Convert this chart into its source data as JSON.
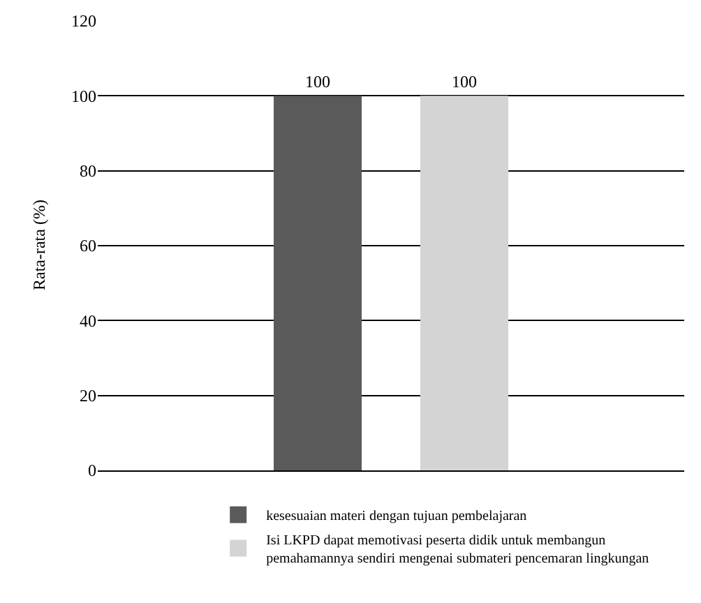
{
  "chart_data": {
    "type": "bar",
    "categories": [
      null
    ],
    "ylabel": "Rata-rata (%)",
    "ylim": [
      0,
      120
    ],
    "yticks": [
      0,
      20,
      40,
      60,
      80,
      100,
      120
    ],
    "grid": "y",
    "legend": "bottom",
    "data_labels": true,
    "series": [
      {
        "name": "kesesuaian materi dengan tujuan pembelajaran",
        "color": "#5a5a5a",
        "values": [
          100
        ]
      },
      {
        "name": "Isi LKPD dapat memotivasi peserta didik untuk membangun pemahamannya sendiri mengenai submateri pencemaran lingkungan",
        "color": "#d4d4d4",
        "values": [
          100
        ]
      }
    ]
  }
}
